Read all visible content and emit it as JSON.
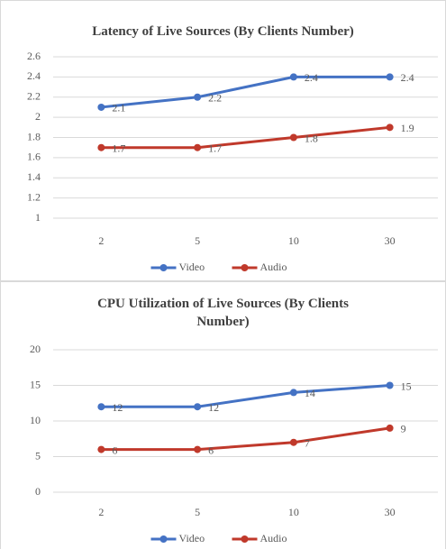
{
  "chart_data": [
    {
      "type": "line",
      "title": "Latency of Live Sources (By Clients Number)",
      "categories": [
        "2",
        "5",
        "10",
        "30"
      ],
      "series": [
        {
          "name": "Video",
          "color": "#4472c4",
          "values": [
            2.1,
            2.2,
            2.4,
            2.4
          ]
        },
        {
          "name": "Audio",
          "color": "#c0392b",
          "values": [
            1.7,
            1.7,
            1.8,
            1.9
          ]
        }
      ],
      "ylim": [
        1,
        2.6
      ],
      "yticks": [
        1,
        1.2,
        1.4,
        1.6,
        1.8,
        2,
        2.2,
        2.4,
        2.6
      ],
      "grid": true,
      "legend": "bottom"
    },
    {
      "type": "line",
      "title": "CPU Utilization of Live Sources (By Clients Number)",
      "categories": [
        "2",
        "5",
        "10",
        "30"
      ],
      "series": [
        {
          "name": "Video",
          "color": "#4472c4",
          "values": [
            12,
            12,
            14,
            15
          ]
        },
        {
          "name": "Audio",
          "color": "#c0392b",
          "values": [
            6,
            6,
            7,
            9
          ]
        }
      ],
      "ylim": [
        0,
        20
      ],
      "yticks": [
        0,
        5,
        10,
        15,
        20
      ],
      "grid": true,
      "legend": "bottom"
    }
  ]
}
